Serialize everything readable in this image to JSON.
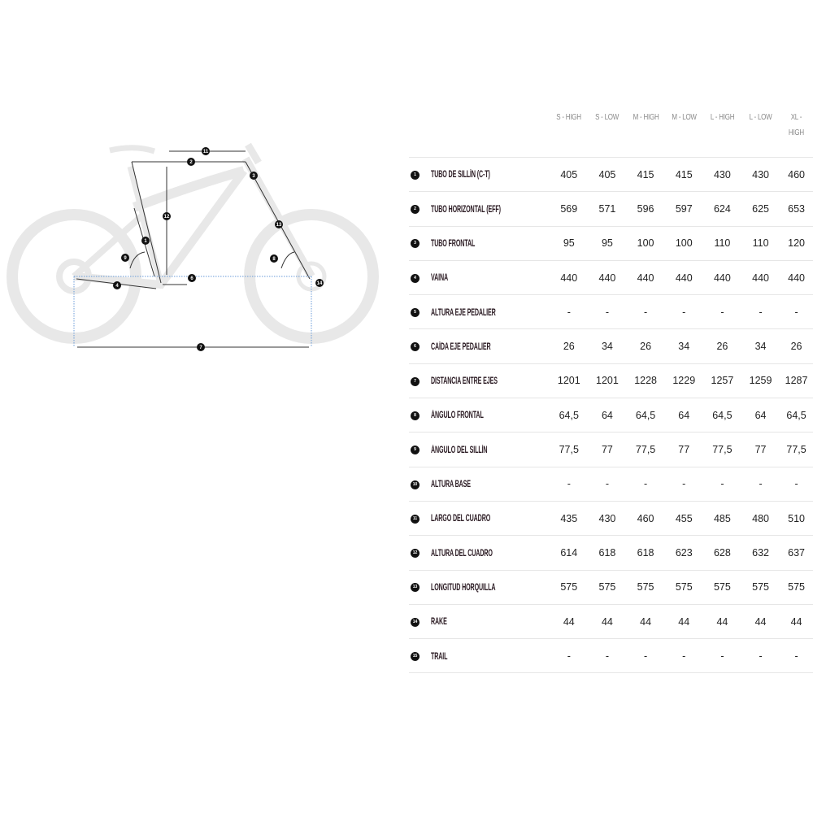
{
  "columns": [
    "S - HIGH",
    "S - LOW",
    "M - HIGH",
    "M - LOW",
    "L - HIGH",
    "L - LOW",
    "XL - HIGH"
  ],
  "rows": [
    {
      "num": "1",
      "label": "TUBO DE SILLÍN (C-T)",
      "values": [
        "405",
        "405",
        "415",
        "415",
        "430",
        "430",
        "460"
      ]
    },
    {
      "num": "2",
      "label": "TUBO HORIZONTAL (EFF)",
      "values": [
        "569",
        "571",
        "596",
        "597",
        "624",
        "625",
        "653"
      ]
    },
    {
      "num": "3",
      "label": "TUBO FRONTAL",
      "values": [
        "95",
        "95",
        "100",
        "100",
        "110",
        "110",
        "120"
      ]
    },
    {
      "num": "4",
      "label": "VAINA",
      "values": [
        "440",
        "440",
        "440",
        "440",
        "440",
        "440",
        "440"
      ]
    },
    {
      "num": "5",
      "label": "ALTURA EJE PEDALIER",
      "values": [
        "-",
        "-",
        "-",
        "-",
        "-",
        "-",
        "-"
      ]
    },
    {
      "num": "6",
      "label": "CAÍDA EJE PEDALIER",
      "values": [
        "26",
        "34",
        "26",
        "34",
        "26",
        "34",
        "26"
      ]
    },
    {
      "num": "7",
      "label": "DISTANCIA ENTRE EJES",
      "values": [
        "1201",
        "1201",
        "1228",
        "1229",
        "1257",
        "1259",
        "1287"
      ]
    },
    {
      "num": "8",
      "label": "ÁNGULO FRONTAL",
      "values": [
        "64,5",
        "64",
        "64,5",
        "64",
        "64,5",
        "64",
        "64,5"
      ]
    },
    {
      "num": "9",
      "label": "ÁNGULO DEL SILLÍN",
      "values": [
        "77,5",
        "77",
        "77,5",
        "77",
        "77,5",
        "77",
        "77,5"
      ]
    },
    {
      "num": "10",
      "label": "ALTURA BASE",
      "values": [
        "-",
        "-",
        "-",
        "-",
        "-",
        "-",
        "-"
      ]
    },
    {
      "num": "11",
      "label": "LARGO DEL CUADRO",
      "values": [
        "435",
        "430",
        "460",
        "455",
        "485",
        "480",
        "510"
      ]
    },
    {
      "num": "12",
      "label": "ALTURA DEL CUADRO",
      "values": [
        "614",
        "618",
        "618",
        "623",
        "628",
        "632",
        "637"
      ]
    },
    {
      "num": "13",
      "label": "LONGITUD HORQUILLA",
      "values": [
        "575",
        "575",
        "575",
        "575",
        "575",
        "575",
        "575"
      ]
    },
    {
      "num": "14",
      "label": "RAKE",
      "values": [
        "44",
        "44",
        "44",
        "44",
        "44",
        "44",
        "44"
      ]
    },
    {
      "num": "15",
      "label": "TRAIL",
      "values": [
        "-",
        "-",
        "-",
        "-",
        "-",
        "-",
        "-"
      ]
    }
  ],
  "diagram": {
    "badges": [
      "1",
      "2",
      "3",
      "4",
      "6",
      "7",
      "8",
      "9",
      "11",
      "12",
      "13",
      "14"
    ],
    "colors": {
      "bike": "#e6e6e6",
      "lines": "#333333",
      "dotted": "#6a9bd8",
      "badge": "#111111"
    }
  }
}
